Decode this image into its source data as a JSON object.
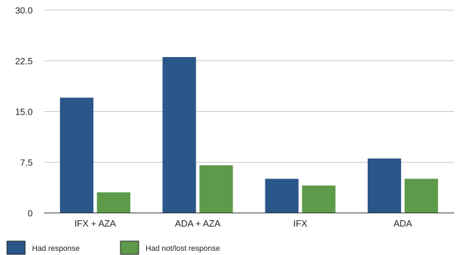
{
  "chart_data": {
    "type": "bar",
    "title": "",
    "xlabel": "",
    "ylabel": "",
    "categories": [
      "IFX + AZA",
      "ADA + AZA",
      "IFX",
      "ADA"
    ],
    "series": [
      {
        "name": "Had response",
        "values": [
          17,
          23,
          5,
          8
        ],
        "color": "#2a5689"
      },
      {
        "name": "Had not/lost response",
        "values": [
          3,
          7,
          4,
          5
        ],
        "color": "#5d9a4a"
      }
    ],
    "ylim": [
      0,
      30
    ],
    "yticks": [
      0,
      7.5,
      15,
      22.5,
      30
    ],
    "ytick_labels": [
      "0",
      "7.5",
      "15.0",
      "22.5",
      "30.0"
    ],
    "grid": true,
    "legend_position": "bottom-left"
  }
}
